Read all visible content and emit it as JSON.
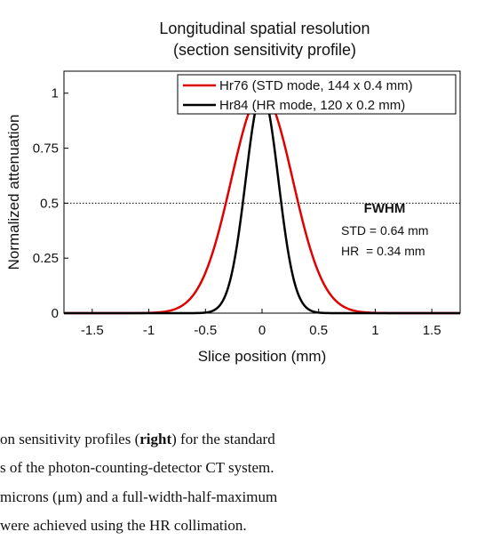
{
  "chart_data": {
    "type": "line",
    "title": "Longitudinal spatial resolution",
    "subtitle": "(section sensitivity profile)",
    "xlabel": "Slice position (mm)",
    "ylabel": "Normalized attenuation",
    "xlim": [
      -1.75,
      1.75
    ],
    "ylim": [
      0,
      1.1
    ],
    "xticks": [
      -1.5,
      -1,
      -0.5,
      0,
      0.5,
      1,
      1.5
    ],
    "xtick_labels": [
      "-1.5",
      "-1",
      "-0.5",
      "0",
      "0.5",
      "1",
      "1.5"
    ],
    "yticks": [
      0,
      0.25,
      0.5,
      0.75,
      1
    ],
    "ytick_labels": [
      "0",
      "0.25",
      "0.5",
      "0.75",
      "1"
    ],
    "grid": false,
    "legend_position": "top-right",
    "series": [
      {
        "name": "Hr76 (STD mode, 144 x 0.4 mm)",
        "color": "#e00000",
        "peak_x": 0,
        "peak_y": 1,
        "fwhm": 0.64
      },
      {
        "name": "Hr84 (HR mode, 120 x 0.2 mm)",
        "color": "#000000",
        "peak_x": 0,
        "peak_y": 1,
        "fwhm": 0.34
      }
    ],
    "reference_line": {
      "y": 0.5,
      "style": "dotted"
    },
    "annotation": {
      "heading": "FWHM",
      "line1": "STD = 0.64 mm",
      "line2": "HR  = 0.34 mm"
    }
  },
  "caption": {
    "line1_text": "on sensitivity profiles (",
    "line1_bold": "right",
    "line1_tail": ") for the standard",
    "line2": "s of the photon-counting-detector CT system.",
    "line3": "microns (μm) and a full-width-half-maximum",
    "line4": "were achieved using the HR collimation."
  }
}
